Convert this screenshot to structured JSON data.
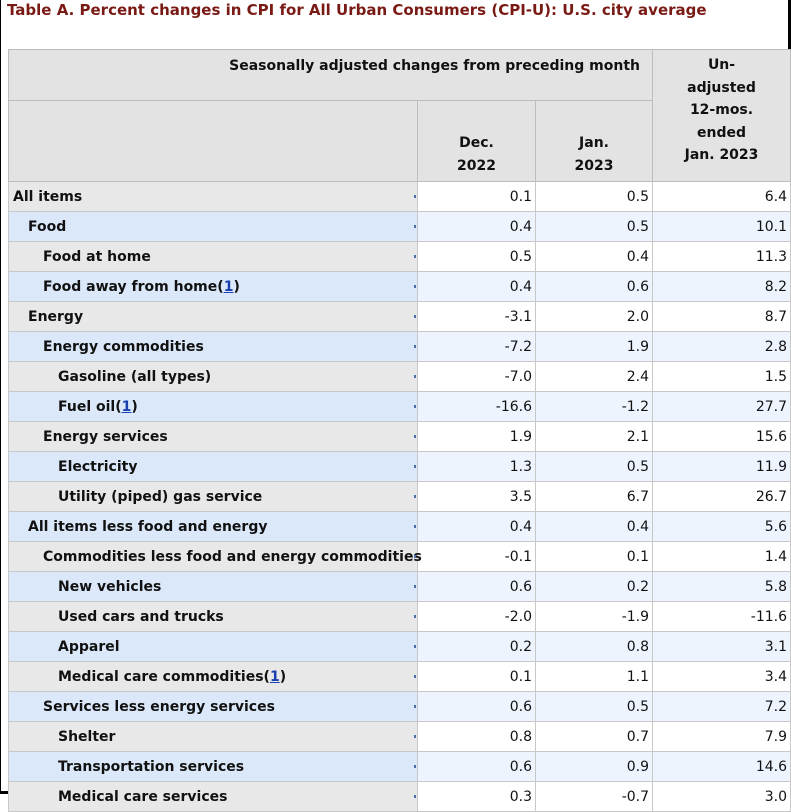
{
  "title": "Table A. Percent changes in CPI for All Urban Consumers (CPI-U): U.S. city average",
  "header": {
    "seasonal": "Seasonally adjusted changes from preceding month",
    "unadjusted": [
      "Un-",
      "adjusted",
      "12-mos.",
      "ended",
      "Jan. 2023"
    ],
    "col1": [
      "Dec.",
      "2022"
    ],
    "col2": [
      "Jan.",
      "2023"
    ]
  },
  "rows": [
    {
      "label": "All items",
      "level": 0,
      "dec": "0.1",
      "jan": "0.5",
      "yoy": "6.4"
    },
    {
      "label": "Food",
      "level": 1,
      "dec": "0.4",
      "jan": "0.5",
      "yoy": "10.1"
    },
    {
      "label": "Food at home",
      "level": 2,
      "dec": "0.5",
      "jan": "0.4",
      "yoy": "11.3"
    },
    {
      "label": "Food away from home",
      "footnote": "1",
      "level": 2,
      "dec": "0.4",
      "jan": "0.6",
      "yoy": "8.2"
    },
    {
      "label": "Energy",
      "level": 1,
      "dec": "-3.1",
      "jan": "2.0",
      "yoy": "8.7"
    },
    {
      "label": "Energy commodities",
      "level": 2,
      "dec": "-7.2",
      "jan": "1.9",
      "yoy": "2.8"
    },
    {
      "label": "Gasoline (all types)",
      "level": 3,
      "dec": "-7.0",
      "jan": "2.4",
      "yoy": "1.5"
    },
    {
      "label": "Fuel oil",
      "footnote": "1",
      "level": 3,
      "dec": "-16.6",
      "jan": "-1.2",
      "yoy": "27.7"
    },
    {
      "label": "Energy services",
      "level": 2,
      "dec": "1.9",
      "jan": "2.1",
      "yoy": "15.6"
    },
    {
      "label": "Electricity",
      "level": 3,
      "dec": "1.3",
      "jan": "0.5",
      "yoy": "11.9"
    },
    {
      "label": "Utility (piped) gas service",
      "level": 3,
      "dec": "3.5",
      "jan": "6.7",
      "yoy": "26.7"
    },
    {
      "label": "All items less food and energy",
      "level": 1,
      "dec": "0.4",
      "jan": "0.4",
      "yoy": "5.6"
    },
    {
      "label": "Commodities less food and energy commodities",
      "level": 2,
      "dec": "-0.1",
      "jan": "0.1",
      "yoy": "1.4"
    },
    {
      "label": "New vehicles",
      "level": 3,
      "dec": "0.6",
      "jan": "0.2",
      "yoy": "5.8"
    },
    {
      "label": "Used cars and trucks",
      "level": 3,
      "dec": "-2.0",
      "jan": "-1.9",
      "yoy": "-11.6"
    },
    {
      "label": "Apparel",
      "level": 3,
      "dec": "0.2",
      "jan": "0.8",
      "yoy": "3.1"
    },
    {
      "label": "Medical care commodities",
      "footnote": "1",
      "level": 3,
      "dec": "0.1",
      "jan": "1.1",
      "yoy": "3.4"
    },
    {
      "label": "Services less energy services",
      "level": 2,
      "dec": "0.6",
      "jan": "0.5",
      "yoy": "7.2"
    },
    {
      "label": "Shelter",
      "level": 3,
      "dec": "0.8",
      "jan": "0.7",
      "yoy": "7.9"
    },
    {
      "label": "Transportation services",
      "level": 3,
      "dec": "0.6",
      "jan": "0.9",
      "yoy": "14.6"
    },
    {
      "label": "Medical care services",
      "level": 3,
      "dec": "0.3",
      "jan": "-0.7",
      "yoy": "3.0"
    }
  ],
  "colors": {
    "title": "#7a1a14",
    "row_blue": "#dbe8fa",
    "row_grey": "#e8e8e8",
    "header_bg": "#e3e3e3",
    "footnote_link": "#1a3fb0"
  }
}
